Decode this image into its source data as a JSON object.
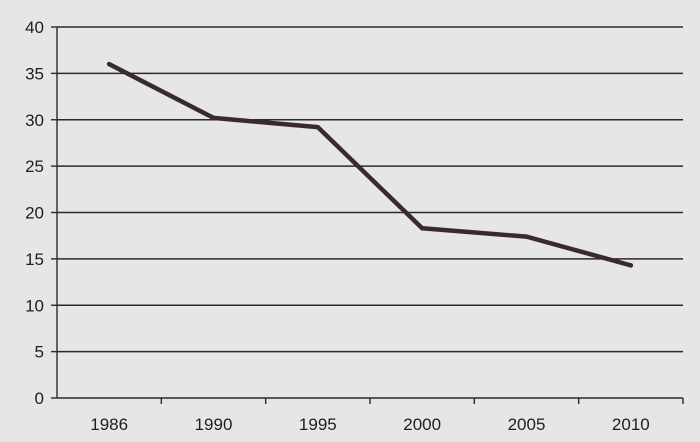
{
  "chart_data": {
    "type": "line",
    "title": "",
    "xlabel": "",
    "ylabel": "",
    "categories": [
      "1986",
      "1990",
      "1995",
      "2000",
      "2005",
      "2010"
    ],
    "series": [
      {
        "values": [
          36,
          30.2,
          29.2,
          18.3,
          17.4,
          14.3
        ]
      }
    ],
    "ylim": [
      0,
      40
    ],
    "y_ticks": [
      "0",
      "5",
      "10",
      "15",
      "20",
      "25",
      "30",
      "35",
      "40"
    ],
    "grid": true,
    "legend": "none",
    "colors": {
      "line": "#3b2a2c",
      "background": "#e6e6e6",
      "grid": "#2a2a2a",
      "text": "#1e1e1e"
    }
  }
}
